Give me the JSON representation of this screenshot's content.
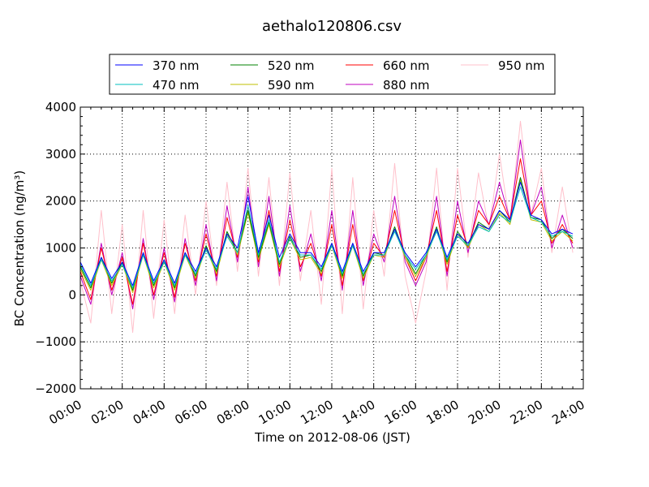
{
  "chart_data": {
    "type": "line",
    "title": "aethalo120806.csv",
    "xlabel": "Time on 2012-08-06 (JST)",
    "ylabel": "BC Concentration (ng/m³)",
    "xlim": [
      "00:00",
      "24:00"
    ],
    "ylim": [
      -2000,
      4000
    ],
    "x_tick_labels": [
      "00:00",
      "02:00",
      "04:00",
      "06:00",
      "08:00",
      "10:00",
      "12:00",
      "14:00",
      "16:00",
      "18:00",
      "20:00",
      "22:00",
      "24:00"
    ],
    "y_tick_labels": [
      "−2000",
      "−1000",
      "0",
      "1000",
      "2000",
      "3000",
      "4000"
    ],
    "grid": true,
    "legend_position": "top",
    "x_hours": [
      0,
      0.5,
      1,
      1.5,
      2,
      2.5,
      3,
      3.5,
      4,
      4.5,
      5,
      5.5,
      6,
      6.5,
      7,
      7.5,
      8,
      8.5,
      9,
      9.5,
      10,
      10.5,
      11,
      11.5,
      12,
      12.5,
      13,
      13.5,
      14,
      14.5,
      15,
      15.5,
      16,
      16.5,
      17,
      17.5,
      18,
      18.5,
      19,
      19.5,
      20,
      20.5,
      21,
      21.5,
      22,
      22.5,
      23,
      23.5
    ],
    "series": [
      {
        "name": "370 nm",
        "color": "#0000ff",
        "values": [
          700,
          250,
          800,
          350,
          700,
          200,
          900,
          300,
          750,
          250,
          900,
          500,
          1000,
          600,
          1300,
          1000,
          2100,
          900,
          1700,
          800,
          1300,
          900,
          900,
          600,
          1100,
          500,
          1100,
          500,
          900,
          900,
          1400,
          900,
          600,
          900,
          1400,
          800,
          1300,
          1100,
          1500,
          1400,
          1800,
          1600,
          2400,
          1700,
          1600,
          1300,
          1400,
          1300
        ]
      },
      {
        "name": "470 nm",
        "color": "#00bfbf",
        "values": [
          650,
          200,
          750,
          300,
          650,
          150,
          850,
          250,
          700,
          200,
          850,
          450,
          950,
          550,
          1250,
          900,
          1900,
          850,
          1600,
          700,
          1200,
          850,
          850,
          550,
          1050,
          450,
          1050,
          450,
          850,
          850,
          1350,
          850,
          550,
          850,
          1350,
          750,
          1250,
          1050,
          1450,
          1350,
          1700,
          1550,
          2300,
          1650,
          1550,
          1250,
          1350,
          1250
        ]
      },
      {
        "name": "520 nm",
        "color": "#008000",
        "values": [
          600,
          150,
          800,
          250,
          700,
          100,
          900,
          200,
          750,
          150,
          900,
          400,
          1050,
          500,
          1350,
          900,
          1800,
          800,
          1550,
          650,
          1250,
          800,
          850,
          500,
          1100,
          400,
          1100,
          400,
          900,
          850,
          1450,
          850,
          450,
          850,
          1450,
          700,
          1350,
          1050,
          1550,
          1400,
          1800,
          1550,
          2500,
          1650,
          1600,
          1200,
          1400,
          1200
        ]
      },
      {
        "name": "590 nm",
        "color": "#bfbf00",
        "values": [
          550,
          100,
          750,
          200,
          650,
          50,
          850,
          150,
          700,
          100,
          850,
          350,
          1000,
          450,
          1300,
          850,
          1750,
          750,
          1500,
          600,
          1200,
          750,
          800,
          450,
          1050,
          350,
          1050,
          350,
          850,
          800,
          1400,
          800,
          400,
          800,
          1400,
          650,
          1300,
          1000,
          1500,
          1350,
          1750,
          1500,
          2450,
          1600,
          1550,
          1150,
          1350,
          1150
        ]
      },
      {
        "name": "660 nm",
        "color": "#ff0000",
        "values": [
          500,
          -100,
          1000,
          100,
          800,
          -200,
          1100,
          0,
          900,
          -50,
          1100,
          300,
          1300,
          400,
          1650,
          800,
          1900,
          700,
          1800,
          500,
          1600,
          600,
          1100,
          400,
          1500,
          200,
          1500,
          300,
          1100,
          800,
          1800,
          800,
          300,
          800,
          1800,
          500,
          1700,
          1000,
          1800,
          1500,
          2100,
          1600,
          2900,
          1700,
          2000,
          1100,
          1500,
          1100
        ]
      },
      {
        "name": "880 nm",
        "color": "#bf00bf",
        "values": [
          400,
          -200,
          1100,
          0,
          900,
          -300,
          1200,
          -100,
          1000,
          -150,
          1200,
          200,
          1500,
          300,
          1900,
          700,
          2300,
          600,
          2100,
          400,
          1900,
          500,
          1300,
          300,
          1800,
          100,
          1800,
          200,
          1300,
          700,
          2100,
          700,
          200,
          700,
          2100,
          400,
          2000,
          900,
          2000,
          1500,
          2400,
          1600,
          3300,
          1700,
          2300,
          1000,
          1700,
          1000
        ]
      },
      {
        "name": "950 nm",
        "color": "#ffc0cb",
        "values": [
          300,
          -600,
          1800,
          -400,
          1500,
          -800,
          1800,
          -500,
          1600,
          -400,
          1700,
          0,
          2000,
          200,
          2400,
          500,
          2700,
          400,
          2500,
          200,
          2600,
          300,
          1800,
          -200,
          2700,
          -400,
          2500,
          -300,
          1800,
          400,
          2800,
          400,
          -600,
          500,
          2700,
          100,
          2700,
          800,
          2600,
          1400,
          3000,
          1500,
          3700,
          1700,
          2700,
          900,
          2300,
          900
        ]
      }
    ]
  }
}
